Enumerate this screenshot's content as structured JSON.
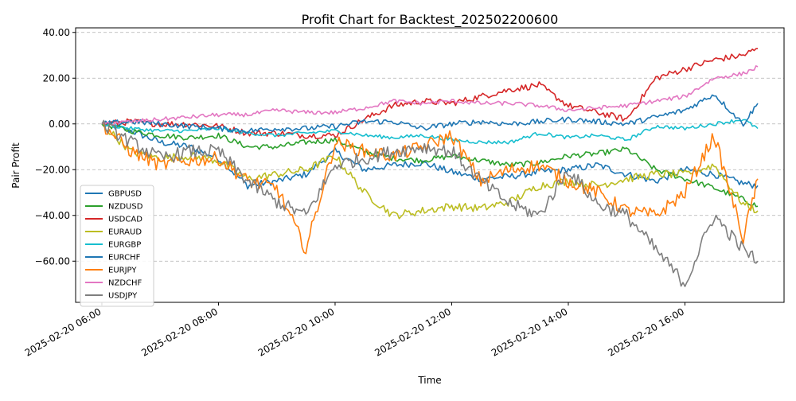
{
  "chart_data": {
    "type": "line",
    "title": "Profit Chart for Backtest_202502200600",
    "xlabel": "Time",
    "ylabel": "Pair Profit",
    "x_start": "2025-02-20 06:00",
    "x_end": "2025-02-20 17:15",
    "xlim": [
      "2025-02-20 05:33",
      "2025-02-20 17:42"
    ],
    "ylim": [
      -78,
      42
    ],
    "x_ticks": [
      "2025-02-20 06:00",
      "2025-02-20 08:00",
      "2025-02-20 10:00",
      "2025-02-20 12:00",
      "2025-02-20 14:00",
      "2025-02-20 16:00"
    ],
    "y_ticks": [
      40,
      20,
      0,
      -20,
      -40,
      -60
    ],
    "y_tick_labels": [
      "40.00",
      "20.00",
      "0.00",
      "−20.00",
      "−40.00",
      "−60.00"
    ],
    "grid": "y-dashed",
    "legend_position": "lower-left",
    "x_times": [
      "06:00",
      "06:30",
      "07:00",
      "07:30",
      "08:00",
      "08:30",
      "09:00",
      "09:30",
      "10:00",
      "10:30",
      "11:00",
      "11:30",
      "12:00",
      "12:30",
      "13:00",
      "13:30",
      "14:00",
      "14:30",
      "15:00",
      "15:30",
      "16:00",
      "16:30",
      "17:00",
      "17:15"
    ],
    "series": [
      {
        "name": "GBPUSD",
        "color": "#1f77b4",
        "values": [
          0,
          -3,
          -8,
          -10,
          -15,
          -27,
          -25,
          -22,
          -12,
          -20,
          -18,
          -17,
          -21,
          -24,
          -23,
          -21,
          -20,
          -18,
          -22,
          -25,
          -20,
          -22,
          -26,
          -27
        ]
      },
      {
        "name": "NZDUSD",
        "color": "#2ca02c",
        "values": [
          0,
          -3,
          -5,
          -6,
          -5,
          -10,
          -10,
          -8,
          -7,
          -12,
          -15,
          -16,
          -14,
          -16,
          -18,
          -17,
          -14,
          -13,
          -11,
          -20,
          -24,
          -28,
          -33,
          -36
        ]
      },
      {
        "name": "USDCAD",
        "color": "#d62728",
        "values": [
          0,
          1,
          0,
          0,
          -1,
          -4,
          -4,
          -5,
          -5,
          2,
          8,
          10,
          9,
          12,
          15,
          17,
          8,
          5,
          2,
          20,
          24,
          28,
          30,
          33
        ]
      },
      {
        "name": "EURAUD",
        "color": "#bcbd22",
        "values": [
          0,
          -12,
          -15,
          -14,
          -16,
          -24,
          -22,
          -20,
          -14,
          -30,
          -40,
          -38,
          -36,
          -37,
          -34,
          -27,
          -25,
          -27,
          -24,
          -22,
          -22,
          -18,
          -35,
          -38
        ]
      },
      {
        "name": "EURGBP",
        "color": "#17becf",
        "values": [
          0,
          -2,
          -3,
          -3,
          -2,
          -4,
          -5,
          -4,
          -3,
          -5,
          -6,
          -5,
          -7,
          -8,
          -8,
          -4,
          -6,
          -5,
          -7,
          -1,
          -2,
          0,
          2,
          -2
        ]
      },
      {
        "name": "EURCHF",
        "color": "#1f77b4",
        "values": [
          0,
          1,
          0,
          -1,
          -2,
          -3,
          -2,
          -2,
          -1,
          1,
          1,
          -2,
          0,
          1,
          0,
          1,
          2,
          1,
          0,
          3,
          6,
          13,
          0,
          9
        ]
      },
      {
        "name": "EURJPY",
        "color": "#ff7f0e",
        "values": [
          0,
          -12,
          -18,
          -16,
          -15,
          -25,
          -28,
          -55,
          -8,
          -12,
          -14,
          -10,
          -5,
          -25,
          -20,
          -18,
          -25,
          -30,
          -38,
          -40,
          -30,
          -5,
          -50,
          -24
        ]
      },
      {
        "name": "NZDCHF",
        "color": "#e377c2",
        "values": [
          0,
          1,
          2,
          3,
          4,
          4,
          6,
          5,
          5,
          7,
          10,
          9,
          10,
          9,
          9,
          8,
          6,
          7,
          8,
          10,
          12,
          20,
          22,
          25
        ]
      },
      {
        "name": "USDJPY",
        "color": "#7f7f7f",
        "values": [
          0,
          -8,
          -15,
          -12,
          -12,
          -25,
          -34,
          -40,
          -18,
          -15,
          -12,
          -10,
          -12,
          -25,
          -35,
          -40,
          -20,
          -35,
          -40,
          -55,
          -70,
          -40,
          -55,
          -60
        ]
      }
    ]
  }
}
